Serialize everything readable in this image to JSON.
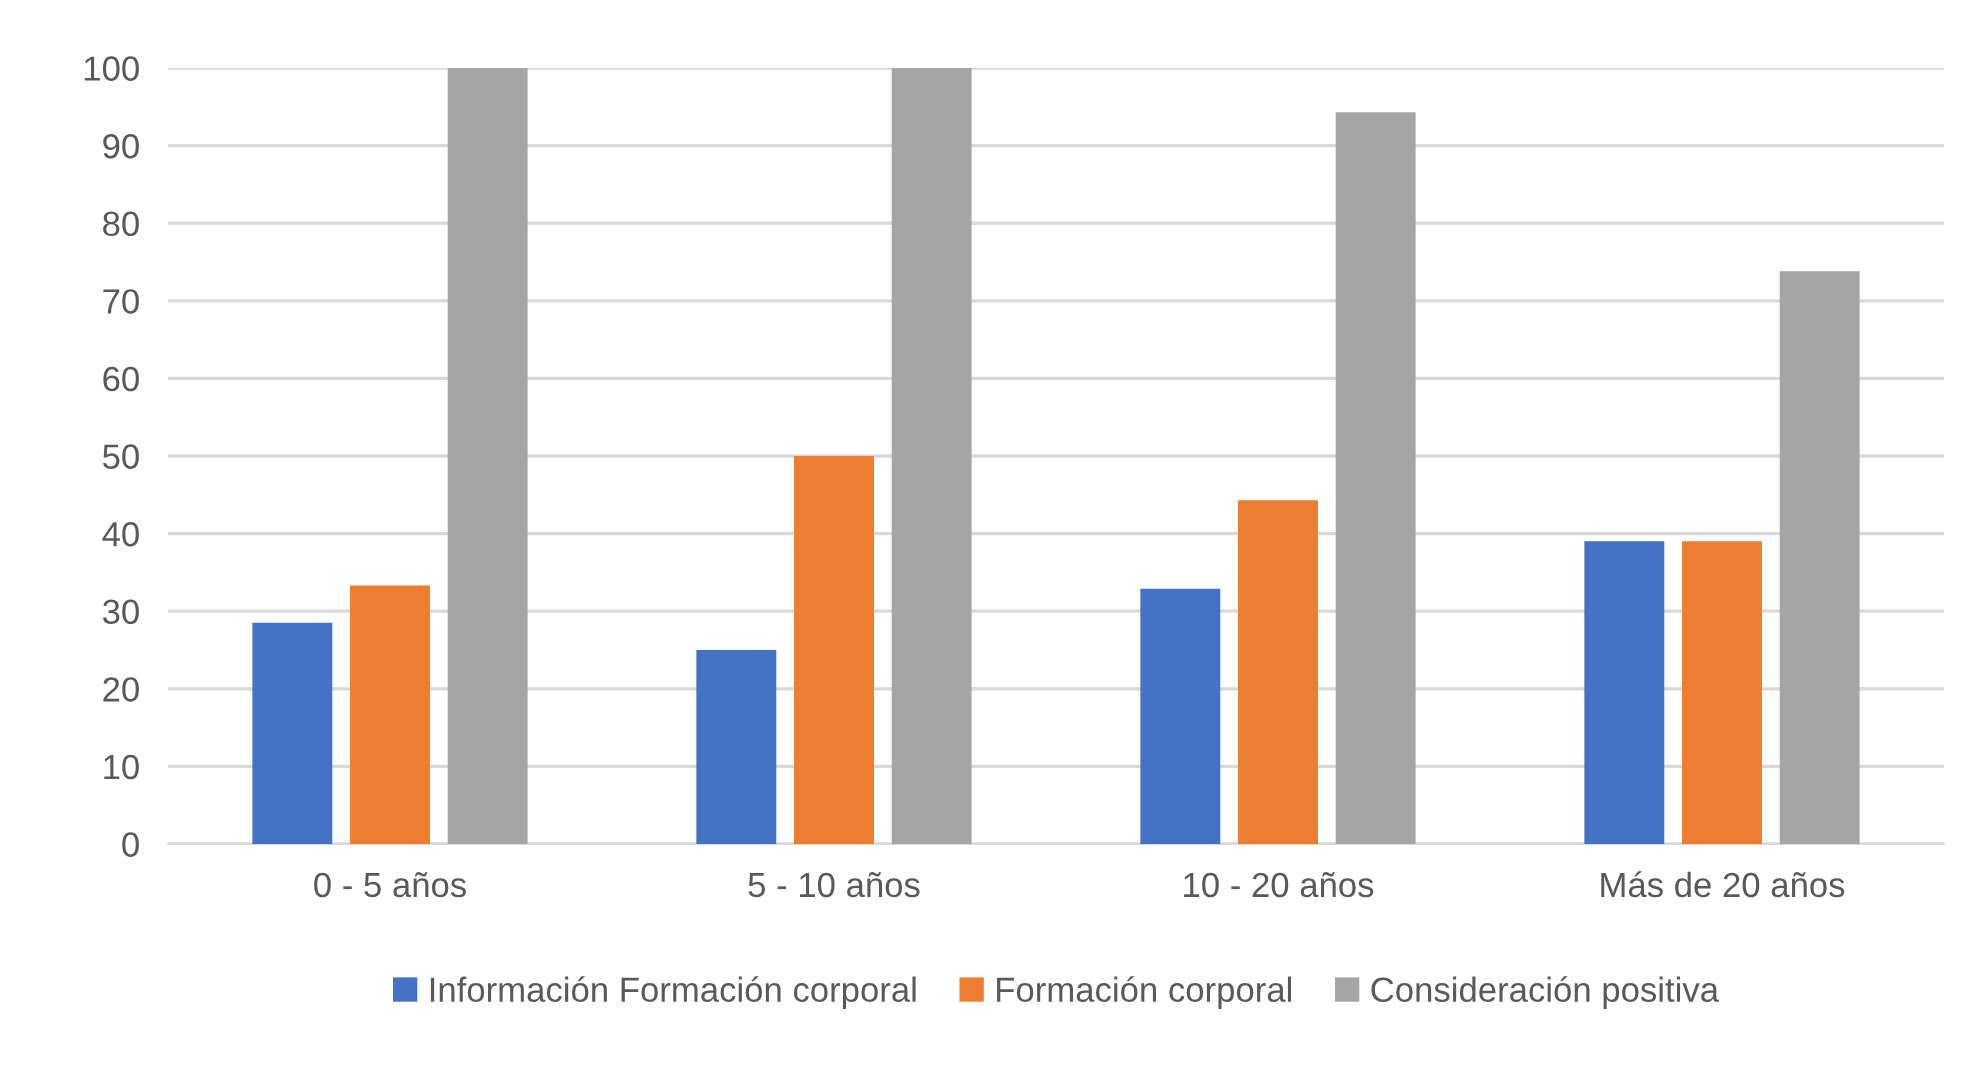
{
  "chart_data": {
    "type": "bar",
    "categories": [
      "0 - 5 años",
      "5 - 10 años",
      "10 - 20 años",
      "Más de 20 años"
    ],
    "series": [
      {
        "name": "Información Formación corporal",
        "color": "#4472c4",
        "values": [
          28.5,
          25,
          32.9,
          39
        ]
      },
      {
        "name": "Formación corporal",
        "color": "#ed7d31",
        "values": [
          33.3,
          50,
          44.3,
          39
        ]
      },
      {
        "name": "Consideración positiva",
        "color": "#a5a5a5",
        "values": [
          100,
          100,
          94.3,
          73.8
        ]
      }
    ],
    "ylim": [
      0,
      100
    ],
    "yticks": [
      0,
      10,
      20,
      30,
      40,
      50,
      60,
      70,
      80,
      90,
      100
    ],
    "grid": "y",
    "legend": "bottom"
  }
}
